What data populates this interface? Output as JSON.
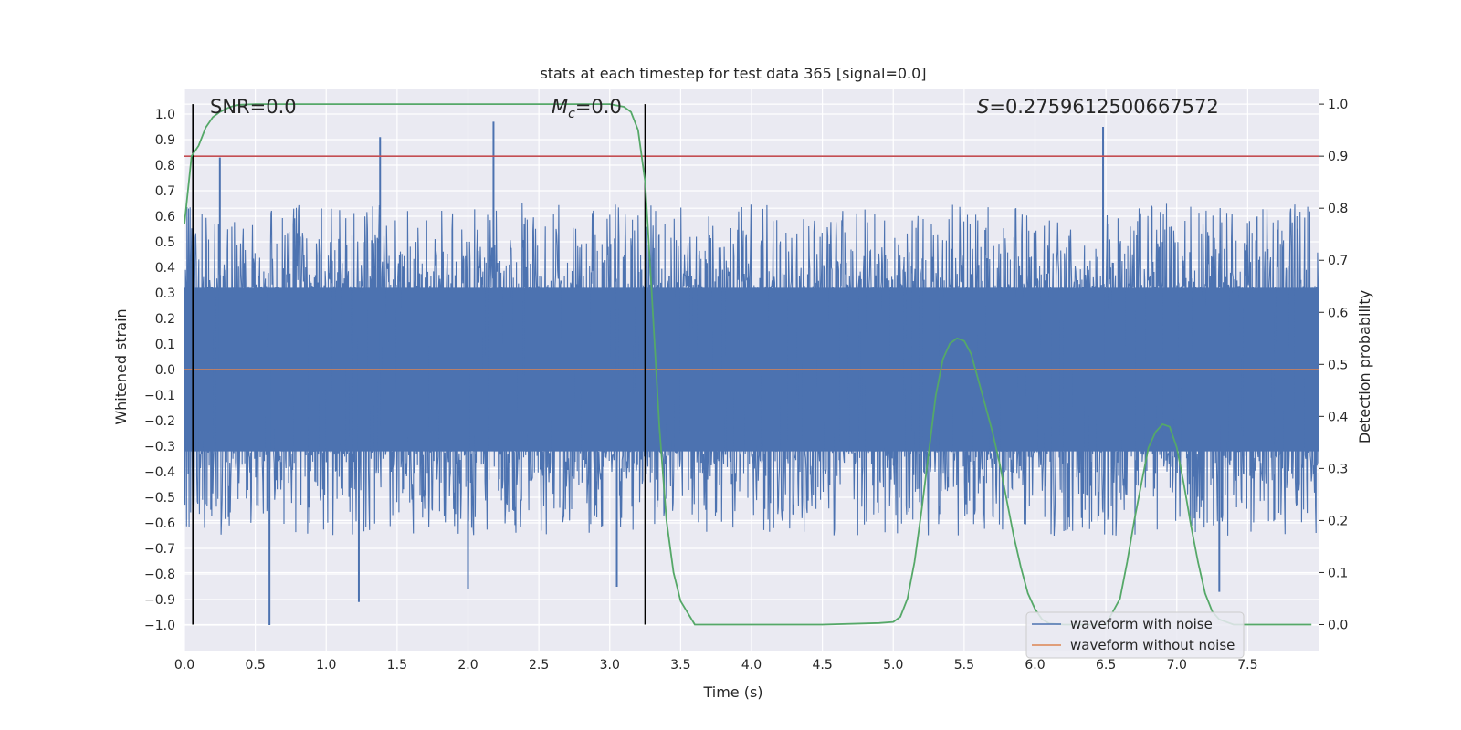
{
  "chart_data": {
    "type": "line",
    "title": "stats at each timestep for test data 365 [signal=0.0]",
    "xlabel": "Time (s)",
    "ylabel": "Whitened strain",
    "ylabel_right": "Detection probability",
    "xlim": [
      0.0,
      8.0
    ],
    "ylim": [
      -1.1,
      1.1
    ],
    "ylim_right": [
      -0.05,
      1.03
    ],
    "grid": true,
    "x_ticks": [
      "0.0",
      "0.5",
      "1.0",
      "1.5",
      "2.0",
      "2.5",
      "3.0",
      "3.5",
      "4.0",
      "4.5",
      "5.0",
      "5.5",
      "6.0",
      "6.5",
      "7.0",
      "7.5"
    ],
    "y_ticks": [
      "1.0",
      "0.9",
      "0.8",
      "0.7",
      "0.6",
      "0.5",
      "0.4",
      "0.3",
      "0.2",
      "0.1",
      "0.0",
      "−0.1",
      "−0.2",
      "−0.3",
      "−0.4",
      "−0.5",
      "−0.6",
      "−0.7",
      "−0.8",
      "−0.9",
      "−1.0"
    ],
    "y2_ticks": [
      "1.0",
      "0.9",
      "0.8",
      "0.7",
      "0.6",
      "0.5",
      "0.4",
      "0.3",
      "0.2",
      "0.1",
      "0.0"
    ],
    "annotations": {
      "snr": "SNR=0.0",
      "mc_symbol": "M",
      "mc_sub": "c",
      "mc_value": "=0.0",
      "s_symbol": "S",
      "s_value": "=0.2759612500667572"
    },
    "vlines": [
      0.06,
      3.25
    ],
    "threshold_line": 0.9,
    "noise_envelope": {
      "center": 0.0,
      "dense_band": [
        -0.32,
        0.32
      ],
      "typical_range": [
        -0.6,
        0.6
      ],
      "peaks": [
        {
          "x": 1.38,
          "y": 0.91
        },
        {
          "x": 2.18,
          "y": 0.97
        },
        {
          "x": 6.48,
          "y": 0.95
        },
        {
          "x": 0.25,
          "y": 0.83
        },
        {
          "x": 0.6,
          "y": -1.0
        },
        {
          "x": 1.23,
          "y": -0.91
        },
        {
          "x": 2.0,
          "y": -0.86
        },
        {
          "x": 3.05,
          "y": -0.85
        },
        {
          "x": 7.3,
          "y": -0.87
        }
      ]
    },
    "series": [
      {
        "name": "waveform with noise",
        "color": "#4c72b0"
      },
      {
        "name": "waveform without noise",
        "color": "#dd8452",
        "x": [
          0.0,
          8.0
        ],
        "y": [
          0.0,
          0.0
        ]
      },
      {
        "color": "#55a868",
        "x": [
          0.0,
          0.05,
          0.1,
          0.15,
          0.2,
          0.25,
          0.3,
          0.35,
          0.4,
          0.5,
          0.6,
          3.0,
          3.1,
          3.15,
          3.2,
          3.25,
          3.3,
          3.35,
          3.4,
          3.45,
          3.5,
          3.6,
          4.0,
          4.5,
          4.9,
          5.0,
          5.05,
          5.1,
          5.15,
          5.2,
          5.25,
          5.3,
          5.35,
          5.4,
          5.45,
          5.5,
          5.55,
          5.6,
          5.65,
          5.7,
          5.75,
          5.8,
          5.85,
          5.9,
          5.95,
          6.0,
          6.05,
          6.1,
          6.2,
          6.3,
          6.5,
          6.6,
          6.65,
          6.7,
          6.75,
          6.8,
          6.85,
          6.9,
          6.95,
          7.0,
          7.05,
          7.1,
          7.15,
          7.2,
          7.25,
          7.3,
          7.4,
          7.5,
          7.95
        ],
        "y": [
          0.77,
          0.9,
          0.92,
          0.955,
          0.975,
          0.985,
          0.992,
          0.997,
          0.999,
          1.0,
          1.0,
          1.0,
          0.995,
          0.985,
          0.95,
          0.85,
          0.62,
          0.38,
          0.2,
          0.1,
          0.045,
          0.0,
          0.0,
          0.0,
          0.003,
          0.005,
          0.015,
          0.05,
          0.12,
          0.22,
          0.33,
          0.44,
          0.51,
          0.54,
          0.55,
          0.545,
          0.52,
          0.47,
          0.42,
          0.37,
          0.31,
          0.24,
          0.17,
          0.11,
          0.06,
          0.03,
          0.01,
          0.002,
          0.0,
          0.0,
          0.0,
          0.05,
          0.12,
          0.2,
          0.27,
          0.34,
          0.37,
          0.385,
          0.38,
          0.34,
          0.27,
          0.19,
          0.12,
          0.06,
          0.025,
          0.01,
          0.0,
          0.0,
          0.0
        ]
      }
    ],
    "legend": {
      "placement": "lower right",
      "entries": [
        "waveform with noise",
        "waveform without noise"
      ]
    }
  }
}
